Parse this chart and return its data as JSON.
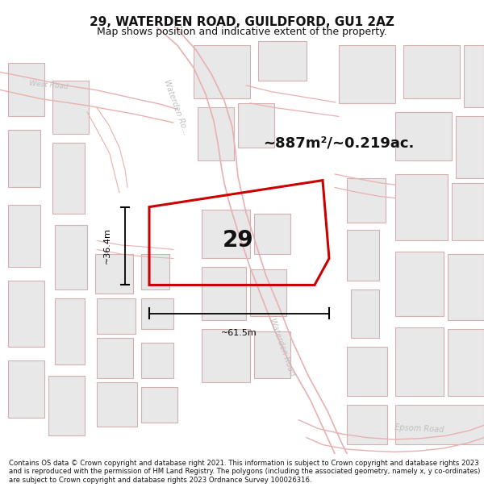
{
  "title": "29, WATERDEN ROAD, GUILDFORD, GU1 2AZ",
  "subtitle": "Map shows position and indicative extent of the property.",
  "footer": "Contains OS data © Crown copyright and database right 2021. This information is subject to Crown copyright and database rights 2023 and is reproduced with the permission of HM Land Registry. The polygons (including the associated geometry, namely x, y co-ordinates) are subject to Crown copyright and database rights 2023 Ordnance Survey 100026316.",
  "area_text": "~887m²/~0.219ac.",
  "width_text": "~61.5m",
  "height_text": "~36.4m",
  "property_number": "29",
  "bg_color": "#ffffff",
  "map_bg": "#f7f7f7",
  "road_line_color": "#e8b0b0",
  "building_fill": "#e8e8e8",
  "building_edge": "#d4b0b0",
  "red_outline": "#cc0000",
  "label_color": "#c0c0c0",
  "dim_color": "#111111",
  "title_color": "#111111",
  "footer_color": "#111111"
}
